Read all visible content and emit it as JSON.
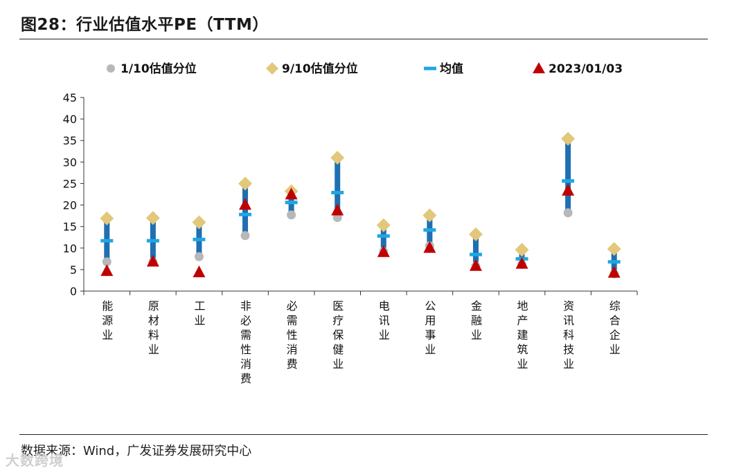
{
  "title": "图28：行业估值水平PE（TTM）",
  "source": "数据来源：Wind，广发证券发展研究中心",
  "watermark": "大数跨境",
  "chart_data": {
    "type": "scatter",
    "title": "行业估值水平PE（TTM）",
    "ylim": [
      0,
      45
    ],
    "yticks": [
      0,
      5,
      10,
      15,
      20,
      25,
      30,
      35,
      40,
      45
    ],
    "ytick_labels": [
      "0",
      "5",
      "10",
      "15",
      "20",
      "25",
      "30",
      "35",
      "40",
      "45"
    ],
    "categories": [
      "能源业",
      "原材料业",
      "工业",
      "非必需性消费",
      "必需性消费",
      "医疗保健业",
      "电讯业",
      "公用事业",
      "金融业",
      "地产建筑业",
      "资讯科技业",
      "综合企业"
    ],
    "series": [
      {
        "name": "1/10估值分位",
        "marker": "circle",
        "color": "#b8b8b8",
        "values": [
          6.8,
          6.8,
          8.0,
          12.9,
          17.7,
          17.1,
          9.2,
          10.5,
          5.8,
          6.2,
          18.2,
          4.0
        ]
      },
      {
        "name": "9/10估值分位",
        "marker": "diamond",
        "color": "#e3c77a",
        "values": [
          16.9,
          17.0,
          16.0,
          25.0,
          23.2,
          31.0,
          15.3,
          17.6,
          13.2,
          9.6,
          35.4,
          9.8
        ]
      },
      {
        "name": "均值",
        "marker": "dash",
        "color": "#1fa7e0",
        "values": [
          11.7,
          11.7,
          12.0,
          17.8,
          20.6,
          22.9,
          12.8,
          14.2,
          8.5,
          7.5,
          25.6,
          6.8
        ]
      },
      {
        "name": "2023/01/03",
        "marker": "triangle",
        "color": "#c00000",
        "values": [
          4.6,
          6.8,
          4.3,
          20.0,
          22.4,
          18.7,
          9.0,
          10.0,
          5.8,
          6.3,
          23.3,
          4.2
        ]
      }
    ],
    "range_bar_color": "#1f6fb2",
    "legend_position": "top"
  }
}
